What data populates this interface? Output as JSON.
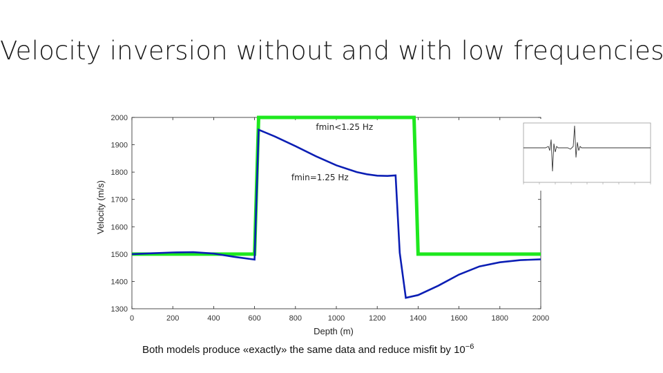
{
  "slide": {
    "title": "Velocity inversion without and with low frequencies",
    "caption_text": "Both models produce «exactly» the same data and reduce misfit by 10",
    "caption_exponent": "−6"
  },
  "colors": {
    "green_model": "#1ee81e",
    "blue_model": "#0b1eb4"
  },
  "chart_data": {
    "type": "line",
    "title": "",
    "xlabel": "Depth (m)",
    "ylabel": "Velocity (m/s)",
    "xlim": [
      0,
      2000
    ],
    "ylim": [
      1300,
      2000
    ],
    "x_ticks": [
      0,
      200,
      400,
      600,
      800,
      1000,
      1200,
      1400,
      1600,
      1800,
      2000
    ],
    "y_ticks": [
      1300,
      1400,
      1500,
      1600,
      1700,
      1800,
      1900,
      2000
    ],
    "grid": false,
    "legend": "none",
    "annotations": [
      {
        "text": "fmin<1.25 Hz",
        "x": 900,
        "y": 1955
      },
      {
        "text": "fmin=1.25 Hz",
        "x": 780,
        "y": 1770
      }
    ],
    "series": [
      {
        "color": "#1ee81e",
        "x": [
          0,
          600,
          620,
          1380,
          1400,
          2000
        ],
        "y": [
          1500,
          1500,
          2000,
          2000,
          1500,
          1500
        ]
      },
      {
        "color": "#0b1eb4",
        "x": [
          0,
          100,
          200,
          300,
          400,
          500,
          600,
          620,
          700,
          800,
          900,
          1000,
          1100,
          1150,
          1200,
          1250,
          1290,
          1310,
          1340,
          1400,
          1500,
          1600,
          1700,
          1800,
          1900,
          2000
        ],
        "y": [
          1500,
          1503,
          1506,
          1507,
          1502,
          1490,
          1480,
          1955,
          1930,
          1895,
          1858,
          1825,
          1800,
          1792,
          1787,
          1786,
          1788,
          1505,
          1340,
          1350,
          1385,
          1425,
          1455,
          1470,
          1478,
          1481
        ]
      }
    ]
  }
}
